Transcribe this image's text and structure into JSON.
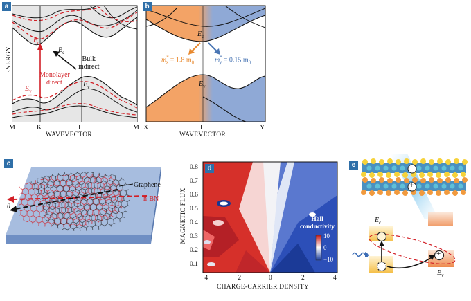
{
  "panel_a": {
    "tag": "a",
    "ylabel": "ENERGY",
    "xlabel": "WAVEVECTOR",
    "xticks": [
      "M",
      "K",
      "Γ",
      "M"
    ],
    "ec_top": "E",
    "ec_top_sub": "c",
    "ec_mid": "E",
    "ec_mid_sub": "c",
    "ev_left": "E",
    "ev_left_sub": "v",
    "ev_mid": "E",
    "ev_mid_sub": "v",
    "bulk_line1": "Bulk",
    "bulk_line2": "indirect",
    "mono_line1": "Monolayer",
    "mono_line2": "direct"
  },
  "panel_b": {
    "tag": "b",
    "xlabel": "WAVEVECTOR",
    "xticks": [
      "X",
      "Γ",
      "Y"
    ],
    "ec": "E",
    "ec_sub": "c",
    "ev": "E",
    "ev_sub": "v",
    "mx_label": "m",
    "mx_sup": "*",
    "mx_sub": "x",
    "mx_value": " = 1.8 m",
    "mx_value_sub": "0",
    "my_label": "m",
    "my_sup": "*",
    "my_sub": "y",
    "my_value": " = 0.15 m",
    "my_value_sub": "0"
  },
  "panel_c": {
    "tag": "c",
    "graphene": "Graphene",
    "hbn": "h-BN",
    "theta": "θ"
  },
  "panel_d": {
    "tag": "d",
    "ylabel": "MAGNETIC FLUX",
    "xlabel": "CHARGE-CARRIER DENSITY",
    "yticks": [
      "0.8",
      "0.7",
      "0.6",
      "0.5",
      "0.4",
      "0.3",
      "0.2",
      "0.1"
    ],
    "xticks": [
      "−4",
      "−2",
      "0",
      "2",
      "4"
    ],
    "legend_title1": "Hall",
    "legend_title2": "conductivity",
    "legend_ticks": [
      "10",
      "0",
      "−10"
    ]
  },
  "panel_e": {
    "tag": "e",
    "ec": "E",
    "ec_sub": "c",
    "ev": "E",
    "ev_sub": "v",
    "minus": "−",
    "plus": "+"
  },
  "colors": {
    "tag_blue": "#2f6fa8",
    "band_red": "#d21f26",
    "orange": "#f3a366",
    "lightblue": "#8fa9d6"
  }
}
